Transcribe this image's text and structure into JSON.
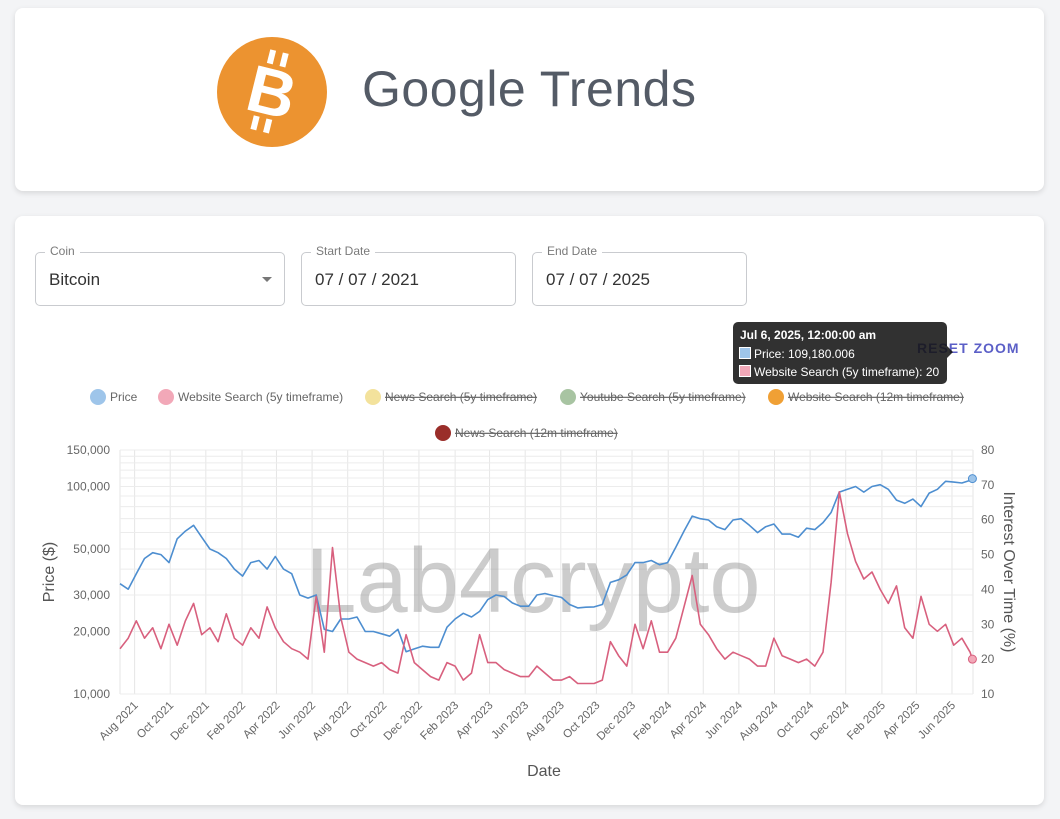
{
  "header": {
    "title": "Google Trends",
    "logo_icon": "bitcoin-logo-icon",
    "logo_color": "#ec9330"
  },
  "controls": {
    "coin": {
      "label": "Coin",
      "value": "Bitcoin"
    },
    "start_date": {
      "label": "Start Date",
      "value": "07 / 07 / 2021"
    },
    "end_date": {
      "label": "End Date",
      "value": "07 / 07 / 2025"
    },
    "reset_zoom": "RESET ZOOM"
  },
  "watermark": "Lab4crypto",
  "tooltip": {
    "title": "Jul 6, 2025, 12:00:00 am",
    "rows": [
      "Price: 109,180.006",
      "Website Search (5y timeframe): 20"
    ]
  },
  "chart_data": {
    "type": "line",
    "xlabel": "Date",
    "ylabel_left": "Price ($)",
    "ylabel_right": "Interest Over Time (%)",
    "y_left_scale": "log",
    "y_left_ticks": [
      10000,
      20000,
      30000,
      50000,
      100000,
      150000
    ],
    "y_left_tick_labels": [
      "10,000",
      "20,000",
      "30,000",
      "50,000",
      "100,000",
      "150,000"
    ],
    "y_right_ticks": [
      10,
      20,
      30,
      40,
      50,
      60,
      70,
      80
    ],
    "y_right_tick_labels": [
      "10",
      "20",
      "30",
      "40",
      "50",
      "60",
      "70",
      "80"
    ],
    "y_left_range": [
      10000,
      150000
    ],
    "y_right_range": [
      10,
      80
    ],
    "x_ticks": [
      "2021-08-01",
      "2021-10-01",
      "2021-12-01",
      "2022-02-01",
      "2022-04-01",
      "2022-06-01",
      "2022-08-01",
      "2022-10-01",
      "2022-12-01",
      "2023-02-01",
      "2023-04-01",
      "2023-06-01",
      "2023-08-01",
      "2023-10-01",
      "2023-12-01",
      "2024-02-01",
      "2024-04-01",
      "2024-06-01",
      "2024-08-01",
      "2024-10-01",
      "2024-12-01",
      "2025-02-01",
      "2025-04-01",
      "2025-06-01"
    ],
    "x_tick_labels": [
      "Aug 2021",
      "Oct 2021",
      "Dec 2021",
      "Feb 2022",
      "Apr 2022",
      "Jun 2022",
      "Aug 2022",
      "Oct 2022",
      "Dec 2022",
      "Feb 2023",
      "Apr 2023",
      "Jun 2023",
      "Aug 2023",
      "Oct 2023",
      "Dec 2023",
      "Feb 2024",
      "Apr 2024",
      "Jun 2024",
      "Aug 2024",
      "Oct 2024",
      "Dec 2024",
      "Feb 2025",
      "Apr 2025",
      "Jun 2025"
    ],
    "x_range": [
      "2021-07-07",
      "2025-07-07"
    ],
    "grid": true,
    "legend_position": "top",
    "legend": [
      {
        "name": "Price",
        "color": "#9ec5ea",
        "hidden": false
      },
      {
        "name": "Website Search (5y timeframe)",
        "color": "#f2a8b8",
        "hidden": false
      },
      {
        "name": "News Search (5y timeframe)",
        "color": "#f3e29c",
        "hidden": true
      },
      {
        "name": "Youtube Search (5y timeframe)",
        "color": "#a8c4a2",
        "hidden": true
      },
      {
        "name": "Website Search (12m timeframe)",
        "color": "#f0a035",
        "hidden": true
      },
      {
        "name": "News Search (12m timeframe)",
        "color": "#9a2e2a",
        "hidden": true
      }
    ],
    "series": [
      {
        "name": "Price",
        "axis": "left",
        "color": "#4d8ed0",
        "points": [
          [
            "2021-07-07",
            34000
          ],
          [
            "2021-07-21",
            32000
          ],
          [
            "2021-08-04",
            38000
          ],
          [
            "2021-08-18",
            45000
          ],
          [
            "2021-09-01",
            48000
          ],
          [
            "2021-09-15",
            47000
          ],
          [
            "2021-09-29",
            43000
          ],
          [
            "2021-10-13",
            56000
          ],
          [
            "2021-10-27",
            61000
          ],
          [
            "2021-11-10",
            65000
          ],
          [
            "2021-11-24",
            57000
          ],
          [
            "2021-12-08",
            50000
          ],
          [
            "2021-12-22",
            48000
          ],
          [
            "2022-01-05",
            45000
          ],
          [
            "2022-01-19",
            40000
          ],
          [
            "2022-02-02",
            37000
          ],
          [
            "2022-02-16",
            43000
          ],
          [
            "2022-03-02",
            44000
          ],
          [
            "2022-03-16",
            40000
          ],
          [
            "2022-03-30",
            46000
          ],
          [
            "2022-04-13",
            40000
          ],
          [
            "2022-04-27",
            38000
          ],
          [
            "2022-05-11",
            30000
          ],
          [
            "2022-05-25",
            29000
          ],
          [
            "2022-06-08",
            30000
          ],
          [
            "2022-06-22",
            20500
          ],
          [
            "2022-07-06",
            20000
          ],
          [
            "2022-07-20",
            23000
          ],
          [
            "2022-08-03",
            23000
          ],
          [
            "2022-08-17",
            23500
          ],
          [
            "2022-08-31",
            20000
          ],
          [
            "2022-09-14",
            20000
          ],
          [
            "2022-09-28",
            19500
          ],
          [
            "2022-10-12",
            19000
          ],
          [
            "2022-10-26",
            20500
          ],
          [
            "2022-11-09",
            16000
          ],
          [
            "2022-11-23",
            16500
          ],
          [
            "2022-12-07",
            17000
          ],
          [
            "2022-12-21",
            16800
          ],
          [
            "2023-01-04",
            16800
          ],
          [
            "2023-01-18",
            21000
          ],
          [
            "2023-02-01",
            23000
          ],
          [
            "2023-02-15",
            24500
          ],
          [
            "2023-03-01",
            23500
          ],
          [
            "2023-03-15",
            25000
          ],
          [
            "2023-03-29",
            28500
          ],
          [
            "2023-04-12",
            30000
          ],
          [
            "2023-04-26",
            29500
          ],
          [
            "2023-05-10",
            27500
          ],
          [
            "2023-05-24",
            26500
          ],
          [
            "2023-06-07",
            26500
          ],
          [
            "2023-06-21",
            30000
          ],
          [
            "2023-07-05",
            30500
          ],
          [
            "2023-07-19",
            29800
          ],
          [
            "2023-08-02",
            29200
          ],
          [
            "2023-08-16",
            27000
          ],
          [
            "2023-08-30",
            26000
          ],
          [
            "2023-09-13",
            26200
          ],
          [
            "2023-09-27",
            26300
          ],
          [
            "2023-10-11",
            27000
          ],
          [
            "2023-10-25",
            34500
          ],
          [
            "2023-11-08",
            35500
          ],
          [
            "2023-11-22",
            37500
          ],
          [
            "2023-12-06",
            43000
          ],
          [
            "2023-12-20",
            43000
          ],
          [
            "2024-01-03",
            44000
          ],
          [
            "2024-01-17",
            42000
          ],
          [
            "2024-01-31",
            43000
          ],
          [
            "2024-02-14",
            51000
          ],
          [
            "2024-02-28",
            61000
          ],
          [
            "2024-03-13",
            72000
          ],
          [
            "2024-03-27",
            70000
          ],
          [
            "2024-04-10",
            69000
          ],
          [
            "2024-04-24",
            64000
          ],
          [
            "2024-05-08",
            62000
          ],
          [
            "2024-05-22",
            69000
          ],
          [
            "2024-06-05",
            70000
          ],
          [
            "2024-06-19",
            65000
          ],
          [
            "2024-07-03",
            60000
          ],
          [
            "2024-07-17",
            64000
          ],
          [
            "2024-07-31",
            66000
          ],
          [
            "2024-08-14",
            59000
          ],
          [
            "2024-08-28",
            59000
          ],
          [
            "2024-09-11",
            57000
          ],
          [
            "2024-09-25",
            63000
          ],
          [
            "2024-10-09",
            62000
          ],
          [
            "2024-10-23",
            67000
          ],
          [
            "2024-11-06",
            75000
          ],
          [
            "2024-11-20",
            94000
          ],
          [
            "2024-12-04",
            97000
          ],
          [
            "2024-12-18",
            100000
          ],
          [
            "2025-01-01",
            94000
          ],
          [
            "2025-01-15",
            100000
          ],
          [
            "2025-01-29",
            102000
          ],
          [
            "2025-02-12",
            97000
          ],
          [
            "2025-02-26",
            86000
          ],
          [
            "2025-03-12",
            83000
          ],
          [
            "2025-03-26",
            87000
          ],
          [
            "2025-04-09",
            80000
          ],
          [
            "2025-04-23",
            93000
          ],
          [
            "2025-05-07",
            97000
          ],
          [
            "2025-05-21",
            106000
          ],
          [
            "2025-06-04",
            105000
          ],
          [
            "2025-06-18",
            104000
          ],
          [
            "2025-07-02",
            107000
          ],
          [
            "2025-07-06",
            109180
          ]
        ]
      },
      {
        "name": "Website Search (5y timeframe)",
        "axis": "right",
        "color": "#d8607e",
        "points": [
          [
            "2021-07-07",
            23
          ],
          [
            "2021-07-21",
            26
          ],
          [
            "2021-08-04",
            31
          ],
          [
            "2021-08-18",
            26
          ],
          [
            "2021-09-01",
            29
          ],
          [
            "2021-09-15",
            23
          ],
          [
            "2021-09-29",
            30
          ],
          [
            "2021-10-13",
            24
          ],
          [
            "2021-10-27",
            31
          ],
          [
            "2021-11-10",
            36
          ],
          [
            "2021-11-24",
            27
          ],
          [
            "2021-12-08",
            29
          ],
          [
            "2021-12-22",
            25
          ],
          [
            "2022-01-05",
            33
          ],
          [
            "2022-01-19",
            26
          ],
          [
            "2022-02-02",
            24
          ],
          [
            "2022-02-16",
            29
          ],
          [
            "2022-03-02",
            26
          ],
          [
            "2022-03-16",
            35
          ],
          [
            "2022-03-30",
            29
          ],
          [
            "2022-04-13",
            25
          ],
          [
            "2022-04-27",
            23
          ],
          [
            "2022-05-11",
            22
          ],
          [
            "2022-05-25",
            20
          ],
          [
            "2022-06-08",
            38
          ],
          [
            "2022-06-22",
            22
          ],
          [
            "2022-07-06",
            52
          ],
          [
            "2022-07-20",
            32
          ],
          [
            "2022-08-03",
            22
          ],
          [
            "2022-08-17",
            20
          ],
          [
            "2022-08-31",
            19
          ],
          [
            "2022-09-14",
            18
          ],
          [
            "2022-09-28",
            19
          ],
          [
            "2022-10-12",
            17
          ],
          [
            "2022-10-26",
            16
          ],
          [
            "2022-11-09",
            27
          ],
          [
            "2022-11-23",
            19
          ],
          [
            "2022-12-07",
            17
          ],
          [
            "2022-12-21",
            15
          ],
          [
            "2023-01-04",
            14
          ],
          [
            "2023-01-18",
            19
          ],
          [
            "2023-02-01",
            18
          ],
          [
            "2023-02-15",
            14
          ],
          [
            "2023-03-01",
            16
          ],
          [
            "2023-03-15",
            27
          ],
          [
            "2023-03-29",
            19
          ],
          [
            "2023-04-12",
            19
          ],
          [
            "2023-04-26",
            17
          ],
          [
            "2023-05-10",
            16
          ],
          [
            "2023-05-24",
            15
          ],
          [
            "2023-06-07",
            15
          ],
          [
            "2023-06-21",
            18
          ],
          [
            "2023-07-05",
            16
          ],
          [
            "2023-07-19",
            14
          ],
          [
            "2023-08-02",
            14
          ],
          [
            "2023-08-16",
            15
          ],
          [
            "2023-08-30",
            13
          ],
          [
            "2023-09-13",
            13
          ],
          [
            "2023-09-27",
            13
          ],
          [
            "2023-10-11",
            14
          ],
          [
            "2023-10-25",
            25
          ],
          [
            "2023-11-08",
            21
          ],
          [
            "2023-11-22",
            18
          ],
          [
            "2023-12-06",
            30
          ],
          [
            "2023-12-20",
            23
          ],
          [
            "2024-01-03",
            31
          ],
          [
            "2024-01-17",
            22
          ],
          [
            "2024-01-31",
            22
          ],
          [
            "2024-02-14",
            26
          ],
          [
            "2024-02-28",
            35
          ],
          [
            "2024-03-13",
            44
          ],
          [
            "2024-03-27",
            30
          ],
          [
            "2024-04-10",
            27
          ],
          [
            "2024-04-24",
            23
          ],
          [
            "2024-05-08",
            20
          ],
          [
            "2024-05-22",
            22
          ],
          [
            "2024-06-05",
            21
          ],
          [
            "2024-06-19",
            20
          ],
          [
            "2024-07-03",
            18
          ],
          [
            "2024-07-17",
            18
          ],
          [
            "2024-07-31",
            26
          ],
          [
            "2024-08-14",
            21
          ],
          [
            "2024-08-28",
            20
          ],
          [
            "2024-09-11",
            19
          ],
          [
            "2024-09-25",
            20
          ],
          [
            "2024-10-09",
            18
          ],
          [
            "2024-10-23",
            22
          ],
          [
            "2024-11-06",
            42
          ],
          [
            "2024-11-20",
            68
          ],
          [
            "2024-12-04",
            56
          ],
          [
            "2024-12-18",
            48
          ],
          [
            "2025-01-01",
            43
          ],
          [
            "2025-01-15",
            45
          ],
          [
            "2025-01-29",
            40
          ],
          [
            "2025-02-12",
            36
          ],
          [
            "2025-02-26",
            41
          ],
          [
            "2025-03-12",
            29
          ],
          [
            "2025-03-26",
            26
          ],
          [
            "2025-04-09",
            38
          ],
          [
            "2025-04-23",
            30
          ],
          [
            "2025-05-07",
            28
          ],
          [
            "2025-05-21",
            30
          ],
          [
            "2025-06-04",
            24
          ],
          [
            "2025-06-18",
            26
          ],
          [
            "2025-07-02",
            22
          ],
          [
            "2025-07-06",
            20
          ]
        ]
      }
    ]
  }
}
